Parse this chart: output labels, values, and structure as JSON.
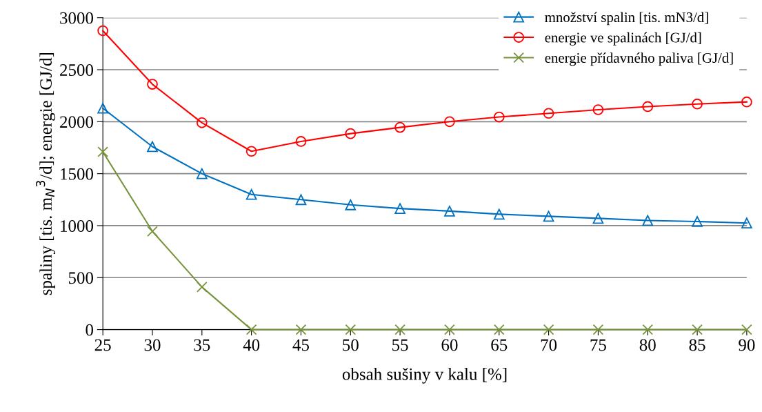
{
  "chart_data": {
    "type": "line",
    "xlabel": "obsah sušiny v kalu [%]",
    "ylabel": "spaliny [tis. m$_{N}$$^{3}$/d]; energie [GJ/d]",
    "x": [
      25,
      30,
      35,
      40,
      45,
      50,
      55,
      60,
      65,
      70,
      75,
      80,
      85,
      90
    ],
    "series": [
      {
        "name": "množství spalin [tis. mN3/d]",
        "color": "#0070c0",
        "marker": "triangle",
        "values": [
          2130,
          1760,
          1500,
          1300,
          1250,
          1200,
          1165,
          1140,
          1110,
          1090,
          1070,
          1050,
          1040,
          1025
        ]
      },
      {
        "name": "energie ve spalinách [GJ/d]",
        "color": "#ff0000",
        "marker": "circle",
        "values": [
          2875,
          2360,
          1990,
          1715,
          1810,
          1885,
          1945,
          2000,
          2045,
          2080,
          2115,
          2145,
          2170,
          2190
        ]
      },
      {
        "name": "energie přídavného paliva [GJ/d]",
        "color": "#77933c",
        "marker": "cross",
        "values": [
          1710,
          945,
          410,
          0,
          0,
          0,
          0,
          0,
          0,
          0,
          0,
          0,
          0,
          0
        ]
      }
    ],
    "xlim": [
      25,
      90
    ],
    "xticks": [
      25,
      30,
      35,
      40,
      45,
      50,
      55,
      60,
      65,
      70,
      75,
      80,
      85,
      90
    ],
    "ylim": [
      0,
      3000
    ],
    "yticks": [
      0,
      500,
      1000,
      1500,
      2000,
      2500,
      3000
    ],
    "grid": "y",
    "legend": "top right",
    "line_style": "solid"
  }
}
